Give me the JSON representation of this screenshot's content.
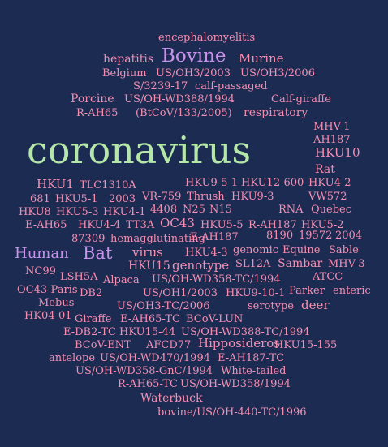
{
  "colors": {
    "background": "#1c2b51",
    "pink": "#f48fb1",
    "green": "#b4e7a8",
    "violet": "#c792ea"
  },
  "words": [
    "encephalomyelitis",
    "hepatitis",
    "Bovine",
    "Murine",
    "Belgium",
    "US/OH3/2003",
    "US/OH3/2006",
    "S/3239-17",
    "calf-passaged",
    "Porcine",
    "US/OH-WD388/1994",
    "Calf-giraffe",
    "R-AH65",
    "(BtCoV/133/2005)",
    "respiratory",
    "MHV-1",
    "AH187",
    "coronavirus",
    "HKU10",
    "Rat",
    "HKU9-5-1",
    "HKU12-600",
    "HKU4-2",
    "HKU1",
    "TLC1310A",
    "681",
    "HKU5-1",
    "2003",
    "VR-759",
    "Thrush",
    "HKU9-3",
    "VW572",
    "HKU8",
    "HKU5-3",
    "HKU4-1",
    "4408",
    "N25",
    "N15",
    "RNA",
    "Quebec",
    "E-AH65",
    "HKU4-4",
    "TT3A",
    "OC43",
    "HKU5-5",
    "R-AH187",
    "HKU5-2",
    "87309",
    "hemagglutinating",
    "E-AH187",
    "8190",
    "19572",
    "2004",
    "Human",
    "Bat",
    "virus",
    "HKU4-3",
    "genomic",
    "Equine",
    "Sable",
    "HKU15",
    "genotype",
    "SL12A",
    "Sambar",
    "MHV-3",
    "NC99",
    "LSH5A",
    "Alpaca",
    "US/OH-WD358-TC/1994",
    "ATCC",
    "OC43-Paris",
    "DB2",
    "US/OH1/2003",
    "HKU9-10-1",
    "Parker",
    "enteric",
    "Mebus",
    "US/OH3-TC/2006",
    "serotype",
    "deer",
    "HK04-01",
    "Giraffe",
    "E-AH65-TC",
    "BCoV-LUN",
    "E-DB2-TC",
    "HKU15-44",
    "US/OH-WD388-TC/1994",
    "BCoV-ENT",
    "AFCD77",
    "Hipposideros",
    "HKU15-155",
    "antelope",
    "US/OH-WD470/1994",
    "E-AH187-TC",
    "US/OH-WD358-GnC/1994",
    "White-tailed",
    "R-AH65-TC",
    "US/OH-WD358/1994",
    "Waterbuck",
    "bovine/US/OH-440-TC/1996"
  ]
}
